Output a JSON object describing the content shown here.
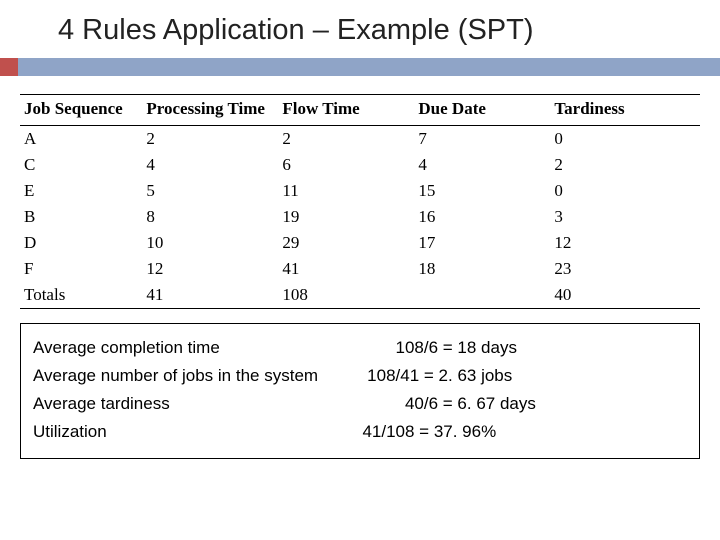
{
  "title": "4 Rules Application – Example (SPT)",
  "accent": {
    "square_color": "#c0504d",
    "bar_color": "#8fa4c7"
  },
  "table": {
    "col_widths_pct": [
      18,
      20,
      20,
      20,
      22
    ],
    "columns": [
      "Job Sequence",
      "Processing Time",
      "Flow Time",
      "Due Date",
      "Tardiness"
    ],
    "rows": [
      [
        "A",
        "2",
        "2",
        "7",
        "0"
      ],
      [
        "C",
        "4",
        "6",
        "4",
        "2"
      ],
      [
        "E",
        "5",
        "11",
        "15",
        "0"
      ],
      [
        "B",
        "8",
        "19",
        "16",
        "3"
      ],
      [
        "D",
        "10",
        "29",
        "17",
        "12"
      ],
      [
        "F",
        "12",
        "41",
        "18",
        "23"
      ],
      [
        "Totals",
        "41",
        "108",
        "",
        "40"
      ]
    ]
  },
  "metrics": [
    {
      "label": "Average completion time",
      "value": "         108/6 = 18 days"
    },
    {
      "label": "Average number of jobs in the system",
      "value": "   108/41 = 2. 63 jobs"
    },
    {
      "label": "Average tardiness",
      "value": "           40/6 = 6. 67 days"
    },
    {
      "label": "Utilization",
      "value": "  41/108 = 37. 96%"
    }
  ]
}
